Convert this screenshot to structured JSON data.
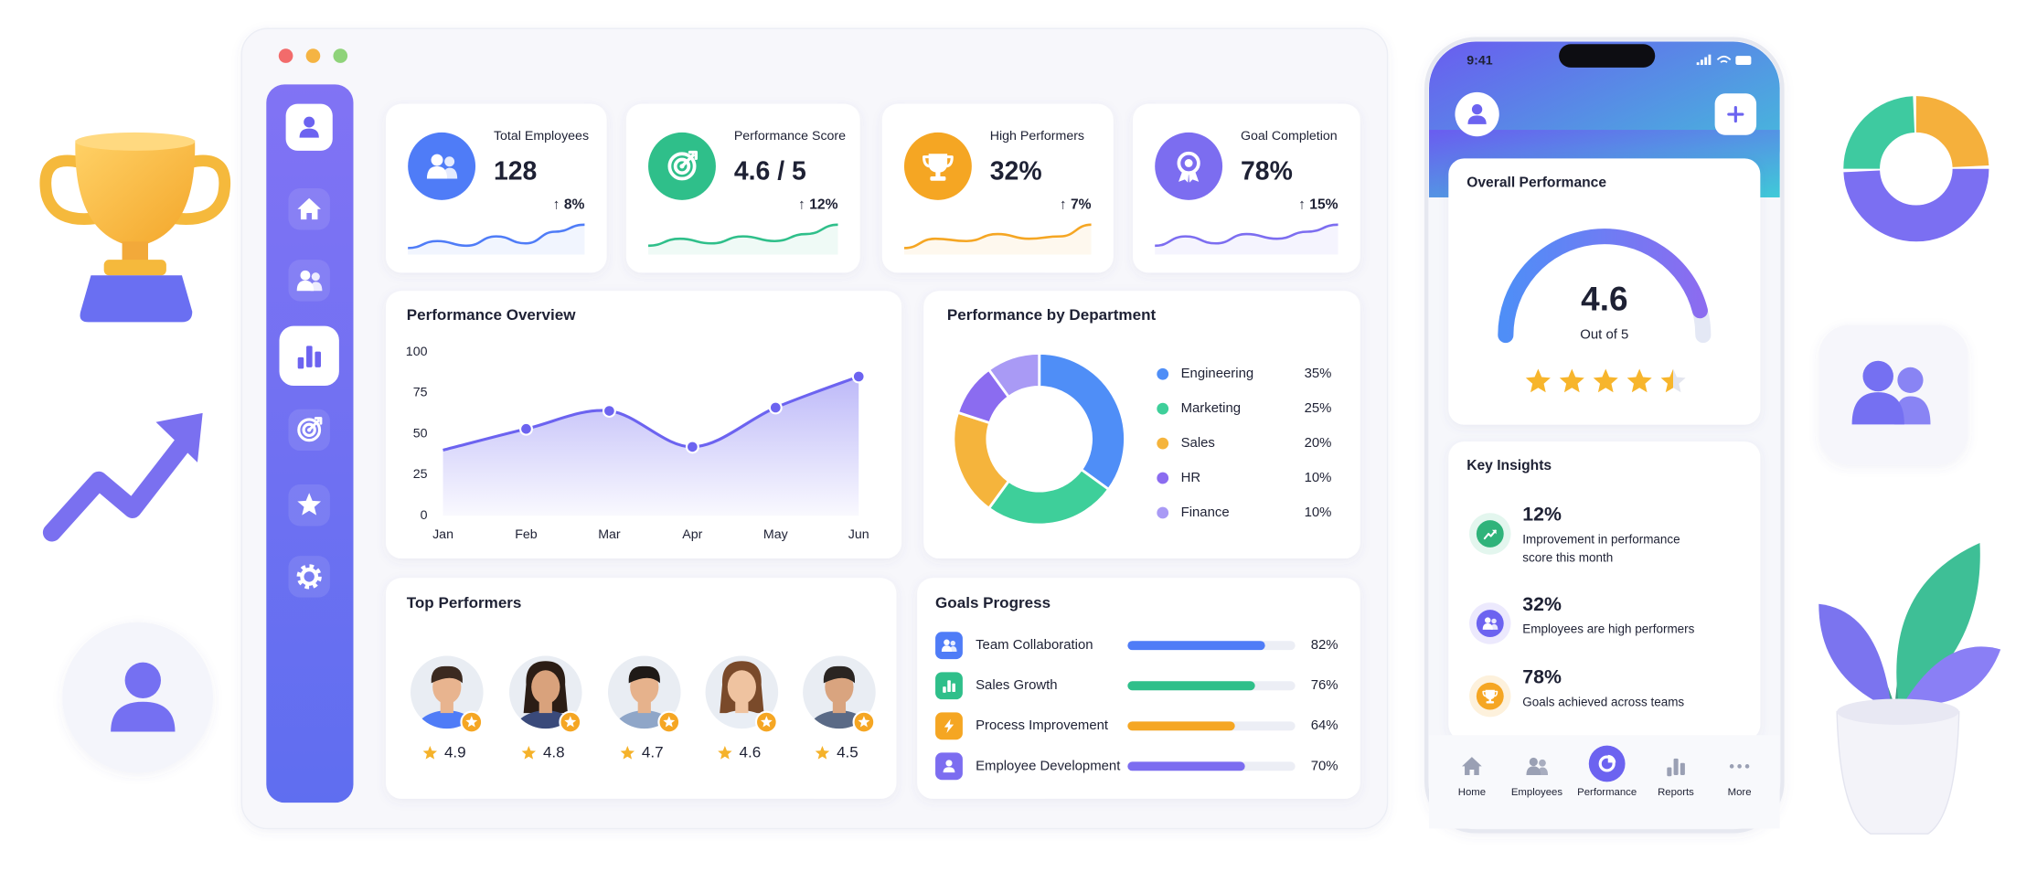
{
  "kpis": [
    {
      "title": "Total Employees",
      "value": "128",
      "change": "↑ 8%"
    },
    {
      "title": "Performance Score",
      "value": "4.6 / 5",
      "change": "↑ 12%"
    },
    {
      "title": "High Performers",
      "value": "32%",
      "change": "↑ 7%"
    },
    {
      "title": "Goal Completion",
      "value": "78%",
      "change": "↑ 15%"
    }
  ],
  "chart_data": [
    {
      "type": "line",
      "title": "Performance Overview",
      "categories": [
        "Jan",
        "Feb",
        "Mar",
        "Apr",
        "May",
        "Jun"
      ],
      "values": [
        40,
        53,
        64,
        42,
        66,
        85
      ],
      "ylim": [
        0,
        100
      ],
      "yticks": [
        0,
        25,
        50,
        75,
        100
      ],
      "grid": false,
      "color": "#6c63f0"
    },
    {
      "type": "pie",
      "title": "Performance by Department",
      "categories": [
        "Engineering",
        "Marketing",
        "Sales",
        "HR",
        "Finance"
      ],
      "values": [
        35,
        25,
        20,
        10,
        10
      ],
      "value_labels": [
        "35%",
        "25%",
        "20%",
        "10%",
        "10%"
      ],
      "colors": [
        "#4f8ef7",
        "#3ecf9a",
        "#f5b43c",
        "#8b6cf0",
        "#a99af5"
      ]
    },
    {
      "type": "bar",
      "title": "Goals Progress",
      "categories": [
        "Team Collaboration",
        "Sales Growth",
        "Process Improvement",
        "Employee Development"
      ],
      "values": [
        82,
        76,
        64,
        70
      ],
      "value_labels": [
        "82%",
        "76%",
        "64%",
        "70%"
      ],
      "xlim": [
        0,
        100
      ],
      "colors": [
        "#4f7cf7",
        "#2fbf8a",
        "#f5a623",
        "#7c6df0"
      ]
    }
  ],
  "top_performers": {
    "title": "Top Performers",
    "ratings": [
      "4.9",
      "4.8",
      "4.7",
      "4.6",
      "4.5"
    ]
  },
  "phone": {
    "time": "9:41",
    "overall": {
      "title": "Overall Performance",
      "score": 4.6,
      "range": [
        0,
        5
      ],
      "scale_label": "Out of 5"
    },
    "insights": {
      "title": "Key Insights",
      "items": [
        {
          "value": "12%",
          "text": [
            "Improvement in performance",
            "score this month"
          ]
        },
        {
          "value": "32%",
          "text": [
            "Employees are high performers"
          ]
        },
        {
          "value": "78%",
          "text": [
            "Goals achieved across teams"
          ]
        }
      ]
    },
    "nav": [
      "Home",
      "Employees",
      "Performance",
      "Reports",
      "More"
    ]
  }
}
